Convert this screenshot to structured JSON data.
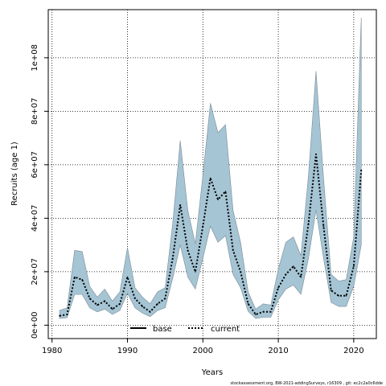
{
  "chart_data": {
    "type": "line",
    "xlabel": "Years",
    "ylabel": "Recruits (age 1)",
    "xlim": [
      1979.5,
      2023
    ],
    "ylim": [
      -5000000,
      118000000
    ],
    "grid": true,
    "x_ticks": [
      1980,
      1990,
      2000,
      2010,
      2020
    ],
    "x_tick_labels": [
      "1980",
      "1990",
      "2000",
      "2010",
      "2020"
    ],
    "y_ticks": [
      0,
      20000000,
      40000000,
      60000000,
      80000000,
      100000000
    ],
    "y_tick_labels": [
      "0e+00",
      "2e+07",
      "4e+07",
      "6e+07",
      "8e+07",
      "1e+08"
    ],
    "legend": {
      "position": "bottom-center",
      "entries": [
        {
          "label": "base",
          "style": "solid"
        },
        {
          "label": "current",
          "style": "dotted"
        }
      ]
    },
    "x": [
      1981,
      1982,
      1983,
      1984,
      1985,
      1986,
      1987,
      1988,
      1989,
      1990,
      1991,
      1992,
      1993,
      1994,
      1995,
      1996,
      1997,
      1998,
      1999,
      2000,
      2001,
      2002,
      2003,
      2004,
      2005,
      2006,
      2007,
      2008,
      2009,
      2010,
      2011,
      2012,
      2013,
      2014,
      2015,
      2016,
      2017,
      2018,
      2019,
      2020,
      2021
    ],
    "series": [
      {
        "name": "current",
        "values": [
          3500000,
          4000000,
          18000000,
          17000000,
          10000000,
          7500000,
          9000000,
          6000000,
          8000000,
          18000000,
          10000000,
          7000000,
          5000000,
          8000000,
          10000000,
          25000000,
          45000000,
          28000000,
          20000000,
          37000000,
          55000000,
          47000000,
          50000000,
          28000000,
          20000000,
          8000000,
          4000000,
          5000000,
          5000000,
          14000000,
          19000000,
          22000000,
          18000000,
          38000000,
          64000000,
          37000000,
          13000000,
          11000000,
          11000000,
          22000000,
          58000000
        ],
        "lower": [
          2500000,
          2800000,
          11500000,
          11500000,
          6500000,
          5000000,
          6000000,
          4000000,
          5500000,
          12000000,
          6500000,
          4500000,
          3200000,
          5500000,
          6500000,
          17500000,
          30000000,
          18000000,
          13500000,
          25000000,
          37000000,
          31000000,
          33500000,
          19000000,
          14000000,
          5200000,
          2500000,
          3000000,
          3000000,
          9500000,
          13500000,
          15000000,
          11500000,
          25000000,
          43000000,
          25000000,
          8500000,
          7000000,
          7000000,
          14500000,
          30000000
        ],
        "upper": [
          5500000,
          6500000,
          28000000,
          27500000,
          14500000,
          10500000,
          13500000,
          9000000,
          12500000,
          29000000,
          14000000,
          10500000,
          8000000,
          12500000,
          14000000,
          38000000,
          69000000,
          43000000,
          30500000,
          56000000,
          83000000,
          72000000,
          75000000,
          43000000,
          31000000,
          12500000,
          6000000,
          8000000,
          7500000,
          21000000,
          31000000,
          33000000,
          26000000,
          56000000,
          95000000,
          55000000,
          19000000,
          16500000,
          17000000,
          33000000,
          115000000
        ]
      }
    ]
  },
  "footer": "stockassessment.org, BW-2021-addingSurveys, r16309 , git: ec2c2a0c6dde",
  "colors": {
    "band": "#a5c4d4",
    "band_edge": "#7a8c96",
    "line": "#000000"
  }
}
